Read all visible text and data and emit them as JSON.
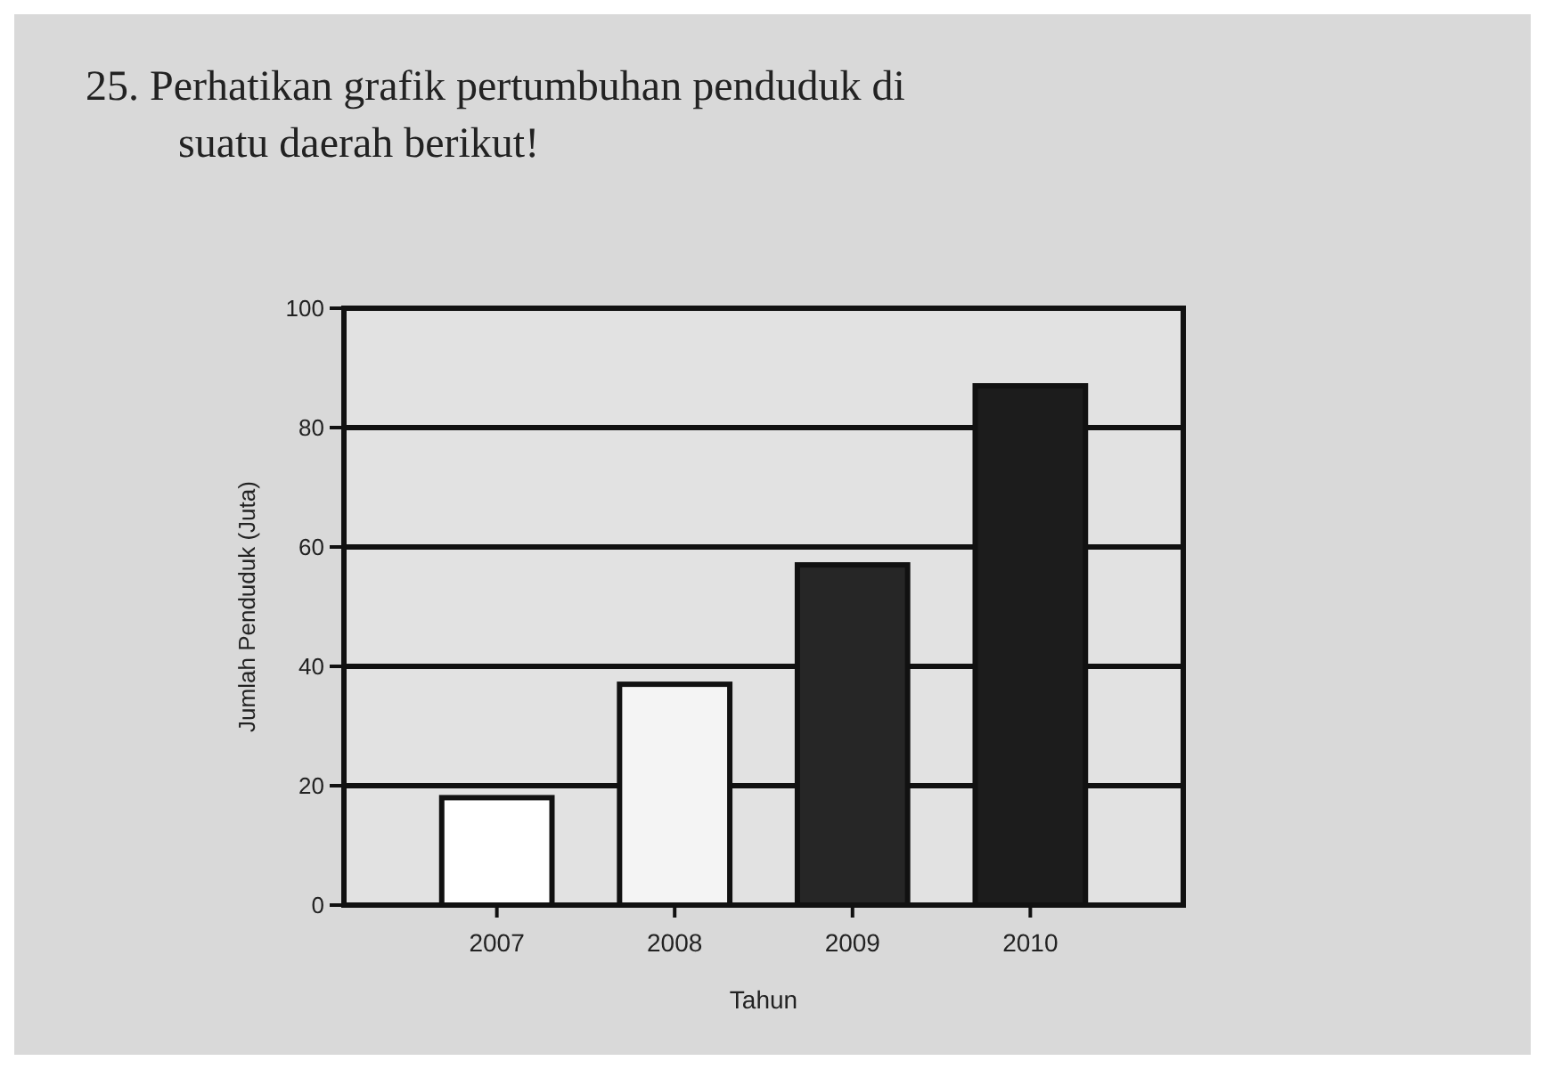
{
  "chart_data": {
    "type": "bar",
    "title": "25. Perhatikan grafik pertumbuhan penduduk di suatu daerah berikut!",
    "categories": [
      "2007",
      "2008",
      "2009",
      "2010"
    ],
    "values": [
      18,
      37,
      57,
      87
    ],
    "colors": [
      "#ffffff",
      "#f4f4f4",
      "#262626",
      "#1c1c1c"
    ],
    "xlabel": "Tahun",
    "ylabel": "Jumlah Penduduk (Juta)",
    "ylim": [
      0,
      100
    ],
    "yticks": [
      0,
      20,
      40,
      60,
      80,
      100
    ],
    "grid": "y"
  }
}
